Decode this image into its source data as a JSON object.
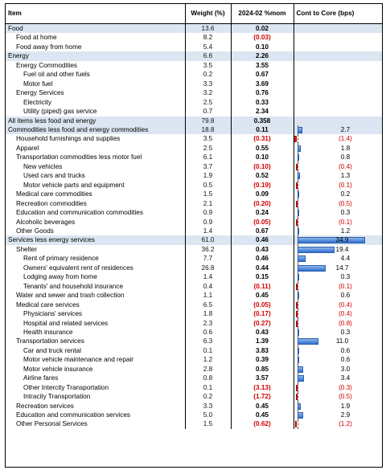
{
  "header": {
    "item": "Item",
    "weight": "Weight (%)",
    "mom": "2024-02 %mom",
    "cont": "Cont to Core (bps)"
  },
  "colors": {
    "highlight": "#dce6f2",
    "negative": "#d20000",
    "bar_positive": "#4f8fdc",
    "bar_negative": "#e03030"
  },
  "rows": [
    {
      "label": "Food",
      "indent": 0,
      "hl": true,
      "weight": "13.6",
      "mom": "0.02",
      "neg": false,
      "cont": "",
      "cv": null
    },
    {
      "label": "Food at home",
      "indent": 1,
      "hl": false,
      "weight": "8.2",
      "mom": "(0.03)",
      "neg": true,
      "cont": "",
      "cv": null
    },
    {
      "label": "Food away from home",
      "indent": 1,
      "hl": false,
      "weight": "5.4",
      "mom": "0.10",
      "neg": false,
      "cont": "",
      "cv": null
    },
    {
      "label": "Energy",
      "indent": 0,
      "hl": true,
      "weight": "6.6",
      "mom": "2.26",
      "neg": false,
      "cont": "",
      "cv": null
    },
    {
      "label": "Energy Commodities",
      "indent": 1,
      "hl": false,
      "weight": "3.5",
      "mom": "3.55",
      "neg": false,
      "cont": "",
      "cv": null
    },
    {
      "label": "Fuel oil and other fuels",
      "indent": 2,
      "hl": false,
      "weight": "0.2",
      "mom": "0.67",
      "neg": false,
      "cont": "",
      "cv": null
    },
    {
      "label": "Motor fuel",
      "indent": 2,
      "hl": false,
      "weight": "3.3",
      "mom": "3.69",
      "neg": false,
      "cont": "",
      "cv": null
    },
    {
      "label": "Energy Services",
      "indent": 1,
      "hl": false,
      "weight": "3.2",
      "mom": "0.76",
      "neg": false,
      "cont": "",
      "cv": null
    },
    {
      "label": "Electricity",
      "indent": 2,
      "hl": false,
      "weight": "2.5",
      "mom": "0.33",
      "neg": false,
      "cont": "",
      "cv": null
    },
    {
      "label": "Utility (piped) gas service",
      "indent": 2,
      "hl": false,
      "weight": "0.7",
      "mom": "2.34",
      "neg": false,
      "cont": "",
      "cv": null
    },
    {
      "label": "All items less food and energy",
      "indent": 0,
      "hl": true,
      "weight": "79.8",
      "mom": "0.358",
      "neg": false,
      "cont": "",
      "cv": null
    },
    {
      "label": "Commodities less food and energy commodities",
      "indent": 0,
      "hl": true,
      "weight": "18.8",
      "mom": "0.11",
      "neg": false,
      "cont": "2.7",
      "cv": 2.7
    },
    {
      "label": "Household furnishings and supplies",
      "indent": 1,
      "hl": false,
      "weight": "3.5",
      "mom": "(0.31)",
      "neg": true,
      "cont": "(1.4)",
      "cv": -1.4
    },
    {
      "label": "Apparel",
      "indent": 1,
      "hl": false,
      "weight": "2.5",
      "mom": "0.55",
      "neg": false,
      "cont": "1.8",
      "cv": 1.8
    },
    {
      "label": "Transportation commodities less motor fuel",
      "indent": 1,
      "hl": false,
      "weight": "6.1",
      "mom": "0.10",
      "neg": false,
      "cont": "0.8",
      "cv": 0.8
    },
    {
      "label": "New vehicles",
      "indent": 2,
      "hl": false,
      "weight": "3.7",
      "mom": "(0.10)",
      "neg": true,
      "cont": "(0.4)",
      "cv": -0.4
    },
    {
      "label": "Used cars and trucks",
      "indent": 2,
      "hl": false,
      "weight": "1.9",
      "mom": "0.52",
      "neg": false,
      "cont": "1.3",
      "cv": 1.3
    },
    {
      "label": "Motor vehicle parts and equipment",
      "indent": 2,
      "hl": false,
      "weight": "0.5",
      "mom": "(0.19)",
      "neg": true,
      "cont": "(0.1)",
      "cv": -0.1
    },
    {
      "label": "Medical care commodities",
      "indent": 1,
      "hl": false,
      "weight": "1.5",
      "mom": "0.09",
      "neg": false,
      "cont": "0.2",
      "cv": 0.2
    },
    {
      "label": "Recreation commodities",
      "indent": 1,
      "hl": false,
      "weight": "2.1",
      "mom": "(0.20)",
      "neg": true,
      "cont": "(0.5)",
      "cv": -0.5
    },
    {
      "label": "Education and communication commodities",
      "indent": 1,
      "hl": false,
      "weight": "0.9",
      "mom": "0.24",
      "neg": false,
      "cont": "0.3",
      "cv": 0.3
    },
    {
      "label": "Alcoholic beverages",
      "indent": 1,
      "hl": false,
      "weight": "0.9",
      "mom": "(0.05)",
      "neg": true,
      "cont": "(0.1)",
      "cv": -0.1
    },
    {
      "label": "Other Goods",
      "indent": 1,
      "hl": false,
      "weight": "1.4",
      "mom": "0.67",
      "neg": false,
      "cont": "1.2",
      "cv": 1.2
    },
    {
      "label": "Services less energy services",
      "indent": 0,
      "hl": true,
      "weight": "61.0",
      "mom": "0.46",
      "neg": false,
      "cont": "34.9",
      "cv": 34.9
    },
    {
      "label": "Shelter",
      "indent": 1,
      "hl": false,
      "weight": "36.2",
      "mom": "0.43",
      "neg": false,
      "cont": "19.4",
      "cv": 19.4
    },
    {
      "label": "Rent of primary residence",
      "indent": 2,
      "hl": false,
      "weight": "7.7",
      "mom": "0.46",
      "neg": false,
      "cont": "4.4",
      "cv": 4.4
    },
    {
      "label": "Owners' equivalent rent of residences",
      "indent": 2,
      "hl": false,
      "weight": "26.8",
      "mom": "0.44",
      "neg": false,
      "cont": "14.7",
      "cv": 14.7
    },
    {
      "label": "Lodging away from home",
      "indent": 2,
      "hl": false,
      "weight": "1.4",
      "mom": "0.15",
      "neg": false,
      "cont": "0.3",
      "cv": 0.3
    },
    {
      "label": "Tenants' and household insurance",
      "indent": 2,
      "hl": false,
      "weight": "0.4",
      "mom": "(0.11)",
      "neg": true,
      "cont": "(0.1)",
      "cv": -0.1
    },
    {
      "label": "Water and sewer and trash collection",
      "indent": 1,
      "hl": false,
      "weight": "1.1",
      "mom": "0.45",
      "neg": false,
      "cont": "0.6",
      "cv": 0.6
    },
    {
      "label": "Medical care services",
      "indent": 1,
      "hl": false,
      "weight": "6.5",
      "mom": "(0.05)",
      "neg": true,
      "cont": "(0.4)",
      "cv": -0.4
    },
    {
      "label": "Physicians' services",
      "indent": 2,
      "hl": false,
      "weight": "1.8",
      "mom": "(0.17)",
      "neg": true,
      "cont": "(0.4)",
      "cv": -0.4
    },
    {
      "label": "Hospital and related services",
      "indent": 2,
      "hl": false,
      "weight": "2.3",
      "mom": "(0.27)",
      "neg": true,
      "cont": "(0.8)",
      "cv": -0.8
    },
    {
      "label": "Health insurance",
      "indent": 2,
      "hl": false,
      "weight": "0.6",
      "mom": "0.43",
      "neg": false,
      "cont": "0.3",
      "cv": 0.3
    },
    {
      "label": "Transportation services",
      "indent": 1,
      "hl": false,
      "weight": "6.3",
      "mom": "1.39",
      "neg": false,
      "cont": "11.0",
      "cv": 11.0
    },
    {
      "label": "Car and truck rental",
      "indent": 2,
      "hl": false,
      "weight": "0.1",
      "mom": "3.83",
      "neg": false,
      "cont": "0.6",
      "cv": 0.6
    },
    {
      "label": "Motor vehicle maintenance and repair",
      "indent": 2,
      "hl": false,
      "weight": "1.2",
      "mom": "0.39",
      "neg": false,
      "cont": "0.6",
      "cv": 0.6
    },
    {
      "label": "Motor vehicle insurance",
      "indent": 2,
      "hl": false,
      "weight": "2.8",
      "mom": "0.85",
      "neg": false,
      "cont": "3.0",
      "cv": 3.0
    },
    {
      "label": "Airline fares",
      "indent": 2,
      "hl": false,
      "weight": "0.8",
      "mom": "3.57",
      "neg": false,
      "cont": "3.4",
      "cv": 3.4
    },
    {
      "label": "Other Intercity Transportation",
      "indent": 2,
      "hl": false,
      "weight": "0.1",
      "mom": "(3.13)",
      "neg": true,
      "cont": "(0.3)",
      "cv": -0.3
    },
    {
      "label": "Intracity Transportation",
      "indent": 2,
      "hl": false,
      "weight": "0.2",
      "mom": "(1.72)",
      "neg": true,
      "cont": "(0.5)",
      "cv": -0.5
    },
    {
      "label": "Recreation services",
      "indent": 1,
      "hl": false,
      "weight": "3.3",
      "mom": "0.45",
      "neg": false,
      "cont": "1.9",
      "cv": 1.9
    },
    {
      "label": "Education and communication services",
      "indent": 1,
      "hl": false,
      "weight": "5.0",
      "mom": "0.45",
      "neg": false,
      "cont": "2.9",
      "cv": 2.9
    },
    {
      "label": "Other Personal Services",
      "indent": 1,
      "hl": false,
      "weight": "1.5",
      "mom": "(0.62)",
      "neg": true,
      "cont": "(1.2)",
      "cv": -1.2
    }
  ]
}
